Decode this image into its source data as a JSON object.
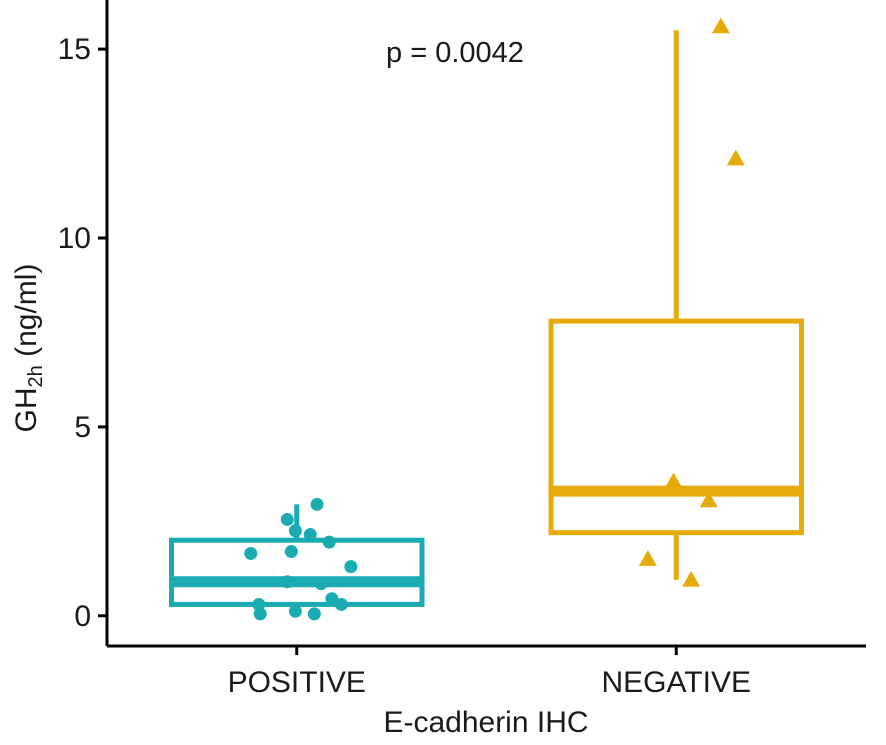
{
  "chart_data": {
    "type": "boxplot",
    "title": "",
    "xlabel": "E-cadherin IHC",
    "ylabel": {
      "prefix": "GH",
      "subscript": "2h",
      "suffix": " (ng/ml)"
    },
    "ylim": [
      -0.8,
      16.3
    ],
    "yticks": [
      0,
      5,
      10,
      15
    ],
    "yticklabels": [
      "0",
      "5",
      "10",
      "15"
    ],
    "categories": [
      "POSITIVE",
      "NEGATIVE"
    ],
    "annotation": "p = 0.0042",
    "grid": false,
    "series": [
      {
        "name": "POSITIVE",
        "color": "#1aabb3",
        "marker": "circle",
        "box": {
          "whisker_low": 0.1,
          "q1": 0.3,
          "median": 0.9,
          "q3": 2.0,
          "whisker_high": 2.95
        },
        "points": [
          [
            -0.34,
            1.65
          ],
          [
            -0.28,
            0.3
          ],
          [
            -0.27,
            0.05
          ],
          [
            -0.07,
            0.9
          ],
          [
            -0.07,
            2.55
          ],
          [
            -0.04,
            1.7
          ],
          [
            -0.01,
            2.25
          ],
          [
            -0.01,
            0.12
          ],
          [
            0.1,
            2.15
          ],
          [
            0.13,
            0.05
          ],
          [
            0.18,
            0.85
          ],
          [
            0.15,
            2.95
          ],
          [
            0.24,
            1.95
          ],
          [
            0.26,
            0.45
          ],
          [
            0.33,
            0.3
          ],
          [
            0.4,
            1.3
          ]
        ]
      },
      {
        "name": "NEGATIVE",
        "color": "#e6ab0a",
        "marker": "triangle",
        "box": {
          "whisker_low": 0.95,
          "q1": 2.2,
          "median": 3.3,
          "q3": 7.8,
          "whisker_high": 15.5
        },
        "points": [
          [
            -0.21,
            1.5
          ],
          [
            -0.02,
            3.55
          ],
          [
            0.11,
            0.95
          ],
          [
            0.24,
            3.05
          ],
          [
            0.33,
            15.6
          ],
          [
            0.44,
            12.1
          ]
        ]
      }
    ]
  }
}
